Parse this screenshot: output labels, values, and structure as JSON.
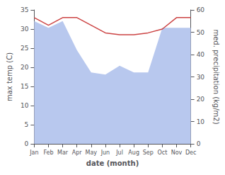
{
  "chart_data": {
    "type": "line",
    "categories": [
      "Jan",
      "Feb",
      "Mar",
      "Apr",
      "May",
      "Jun",
      "Jul",
      "Aug",
      "Sep",
      "Oct",
      "Nov",
      "Dec"
    ],
    "xlabel": "date (month)",
    "ylabel": "max temp (C)",
    "y2label": "med. precipitation (kg/m2)",
    "series": [
      {
        "type": "area",
        "axis": "y2",
        "color": "#b8c8ee",
        "values": [
          55,
          52,
          55,
          42,
          32,
          31,
          35,
          32,
          32,
          52,
          52,
          52
        ]
      },
      {
        "type": "line",
        "color": "#cc4444",
        "values": [
          33.0,
          31.0,
          33.0,
          33.0,
          31.0,
          29.0,
          28.5,
          28.5,
          29.0,
          30.0,
          33.0,
          33.0
        ]
      }
    ],
    "ylim": [
      0,
      35
    ],
    "yticks": [
      0,
      5,
      10,
      15,
      20,
      25,
      30,
      35
    ],
    "y2lim": [
      0,
      60
    ],
    "y2ticks": [
      0,
      10,
      20,
      30,
      40,
      50,
      60
    ],
    "grid": false
  }
}
